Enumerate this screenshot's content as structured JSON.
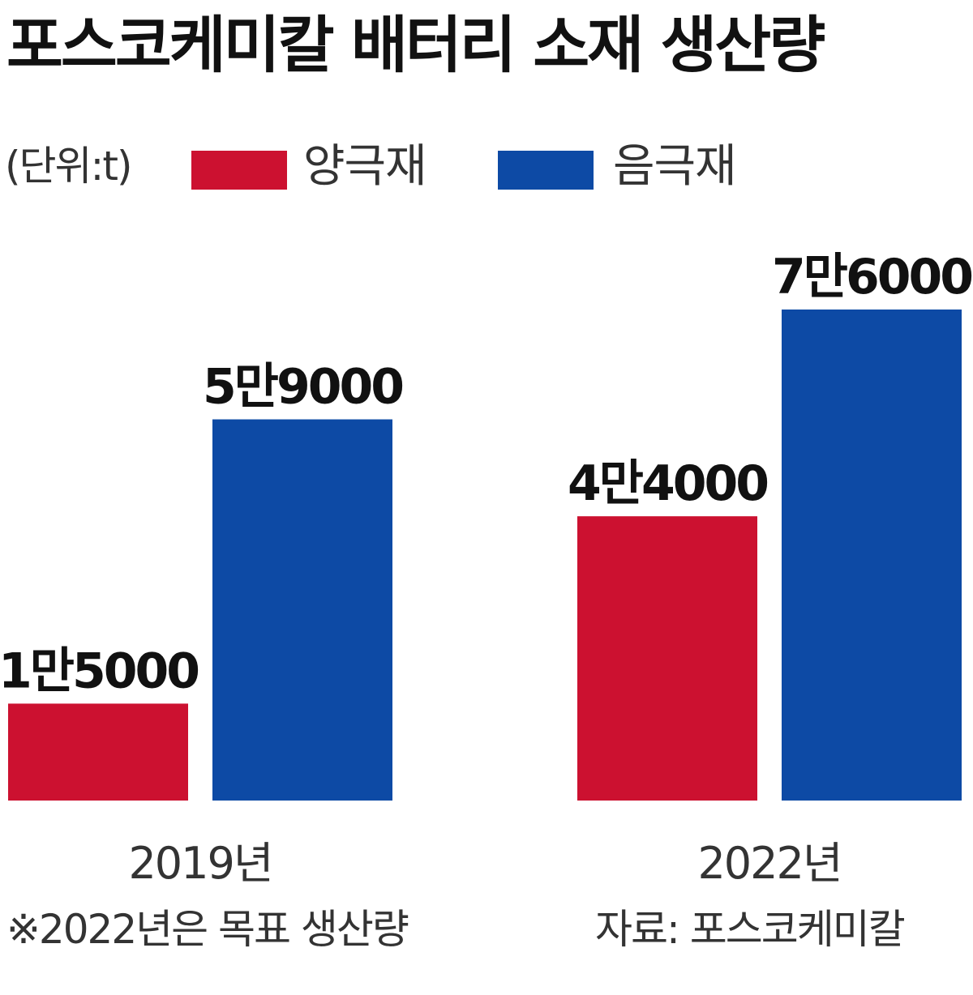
{
  "title": "포스코케미칼 배터리 소재 생산량",
  "unit_label": "(단위:t)",
  "legend": [
    {
      "label": "양극재",
      "color": "#cc1130"
    },
    {
      "label": "음극재",
      "color": "#0d4aa5"
    }
  ],
  "footnote": "※2022년은 목표 생산량",
  "source": "자료: 포스코케미칼",
  "chart_data": {
    "type": "bar",
    "title": "포스코케미칼 배터리 소재 생산량",
    "unit": "t",
    "categories": [
      "2019년",
      "2022년"
    ],
    "series": [
      {
        "name": "양극재",
        "color": "#cc1130",
        "values": [
          15000,
          44000
        ],
        "labels": [
          "1만5000",
          "4만4000"
        ]
      },
      {
        "name": "음극재",
        "color": "#0d4aa5",
        "values": [
          59000,
          76000
        ],
        "labels": [
          "5만9000",
          "7만6000"
        ]
      }
    ],
    "legend_position": "top-left",
    "grid": false,
    "ylim": [
      0,
      76000
    ]
  }
}
